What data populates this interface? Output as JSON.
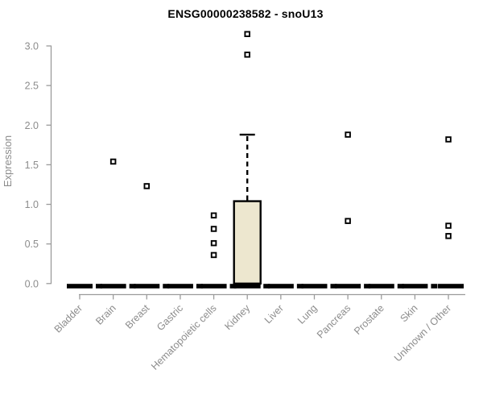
{
  "chart_data": {
    "type": "boxplot",
    "title": "ENSG00000238582 - snoU13",
    "xlabel": "",
    "ylabel": "Expression",
    "ylim": [
      0.0,
      3.0
    ],
    "ytick_labels": [
      "0.0",
      "0.5",
      "1.0",
      "1.5",
      "2.0",
      "2.5",
      "3.0"
    ],
    "ytick_values": [
      0.0,
      0.5,
      1.0,
      1.5,
      2.0,
      2.5,
      3.0
    ],
    "grid": false,
    "legend": false,
    "categories": [
      "Bladder",
      "Brain",
      "Breast",
      "Gastric",
      "Hematopoietic cells",
      "Kidney",
      "Liver",
      "Lung",
      "Pancreas",
      "Prostate",
      "Skin",
      "Unknown / Other"
    ],
    "boxes": [
      {
        "category": "Bladder",
        "q1": 0,
        "median": 0,
        "q3": 0,
        "whisker_low": 0,
        "whisker_high": 0,
        "outliers": []
      },
      {
        "category": "Brain",
        "q1": 0,
        "median": 0,
        "q3": 0,
        "whisker_low": 0,
        "whisker_high": 0,
        "outliers": [
          1.54
        ]
      },
      {
        "category": "Breast",
        "q1": 0,
        "median": 0,
        "q3": 0,
        "whisker_low": 0,
        "whisker_high": 0,
        "outliers": [
          1.23
        ]
      },
      {
        "category": "Gastric",
        "q1": 0,
        "median": 0,
        "q3": 0,
        "whisker_low": 0,
        "whisker_high": 0,
        "outliers": []
      },
      {
        "category": "Hematopoietic cells",
        "q1": 0,
        "median": 0,
        "q3": 0,
        "whisker_low": 0,
        "whisker_high": 0,
        "outliers": [
          0.36,
          0.51,
          0.69,
          0.86
        ]
      },
      {
        "category": "Kidney",
        "q1": 0,
        "median": 0,
        "q3": 1.04,
        "whisker_low": 0,
        "whisker_high": 1.88,
        "outliers": [
          2.89,
          3.15
        ]
      },
      {
        "category": "Liver",
        "q1": 0,
        "median": 0,
        "q3": 0,
        "whisker_low": 0,
        "whisker_high": 0,
        "outliers": []
      },
      {
        "category": "Lung",
        "q1": 0,
        "median": 0,
        "q3": 0,
        "whisker_low": 0,
        "whisker_high": 0,
        "outliers": []
      },
      {
        "category": "Pancreas",
        "q1": 0,
        "median": 0,
        "q3": 0,
        "whisker_low": 0,
        "whisker_high": 0,
        "outliers": [
          0.79,
          1.88
        ]
      },
      {
        "category": "Prostate",
        "q1": 0,
        "median": 0,
        "q3": 0,
        "whisker_low": 0,
        "whisker_high": 0,
        "outliers": []
      },
      {
        "category": "Skin",
        "q1": 0,
        "median": 0,
        "q3": 0,
        "whisker_low": 0,
        "whisker_high": 0,
        "outliers": []
      },
      {
        "category": "Unknown / Other",
        "q1": 0,
        "median": 0,
        "q3": 0,
        "whisker_low": 0,
        "whisker_high": 0,
        "outliers": [
          0.6,
          0.73,
          1.82
        ]
      }
    ],
    "marker": "open-square",
    "colors": {
      "box_fill": "#EDE7CF",
      "box_border": "#000000",
      "flat_box": "#000000",
      "outlier_stroke": "#000000",
      "outlier_fill": "#FFFFFF",
      "axis_line": "#9B9B9B",
      "tick_label": "#8C8C8C",
      "title": "#000000"
    }
  }
}
